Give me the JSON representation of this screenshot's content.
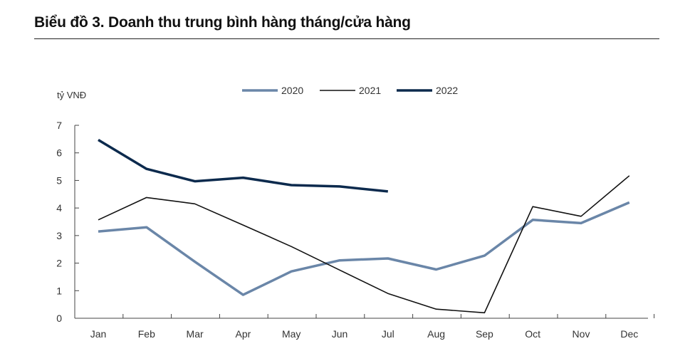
{
  "chart_data": {
    "type": "line",
    "title": "Biểu đồ 3. Doanh thu trung bình hàng tháng/cửa hàng",
    "ylabel": "tỷ VNĐ",
    "xlabel": "",
    "ylim": [
      0,
      7
    ],
    "yticks": [
      0,
      1,
      2,
      3,
      4,
      5,
      6,
      7
    ],
    "categories": [
      "Jan",
      "Feb",
      "Mar",
      "Apr",
      "May",
      "Jun",
      "Jul",
      "Aug",
      "Sep",
      "Oct",
      "Nov",
      "Dec"
    ],
    "grid": false,
    "legend_position": "top-center",
    "series": [
      {
        "name": "2020",
        "color": "#6a86a8",
        "values": [
          3.15,
          3.3,
          2.05,
          0.85,
          1.7,
          2.1,
          2.17,
          1.77,
          2.27,
          3.57,
          3.45,
          4.2
        ]
      },
      {
        "name": "2021",
        "color": "#111111",
        "values": [
          3.57,
          4.38,
          4.15,
          3.38,
          2.6,
          1.75,
          0.9,
          0.33,
          0.2,
          4.05,
          3.7,
          5.17
        ]
      },
      {
        "name": "2022",
        "color": "#0c2a4d",
        "values": [
          6.47,
          5.42,
          4.97,
          5.1,
          4.83,
          4.78,
          4.6,
          null,
          null,
          null,
          null,
          null
        ]
      }
    ]
  }
}
